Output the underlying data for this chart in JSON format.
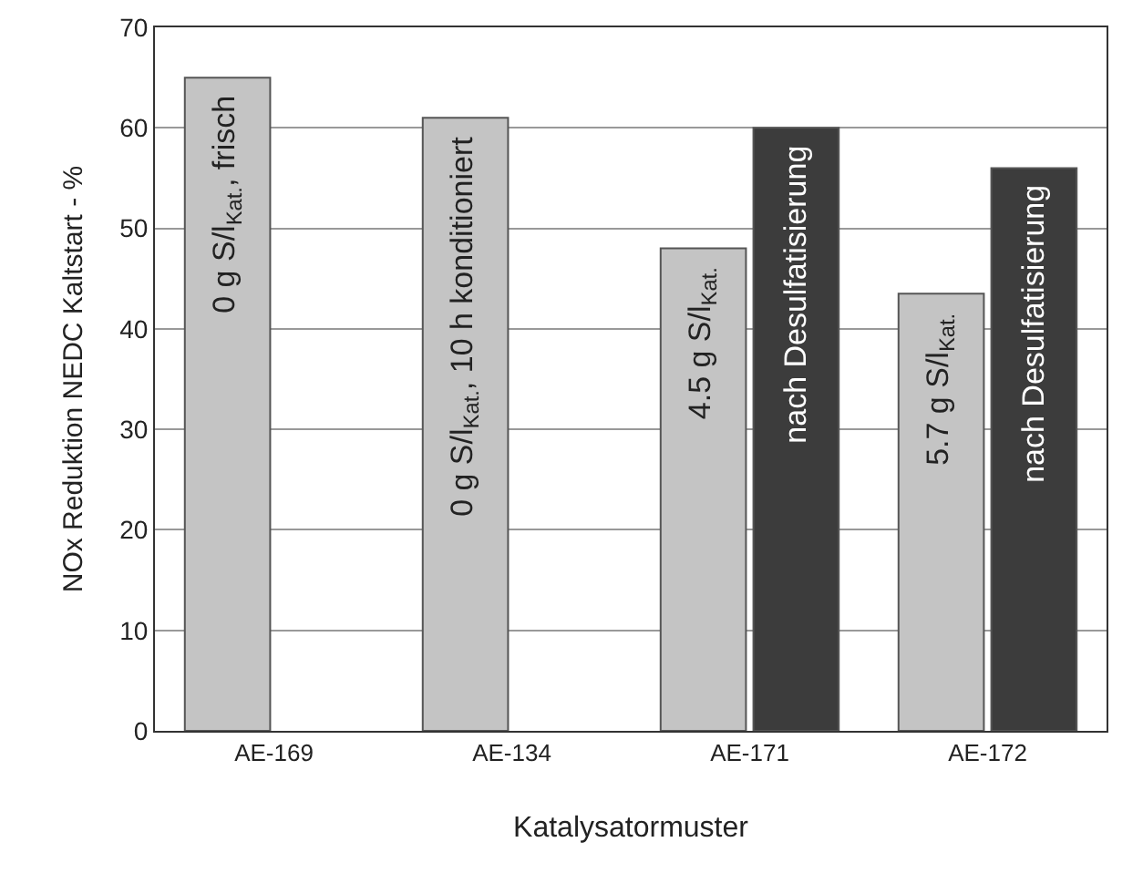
{
  "chart_data": {
    "type": "bar",
    "xlabel": "Katalysatormuster",
    "ylabel": "NOx Reduktion NEDC Kaltstart - %",
    "categories": [
      "AE-169",
      "AE-134",
      "AE-171",
      "AE-172"
    ],
    "series": [
      {
        "color": "#c4c4c4",
        "values": [
          65,
          61,
          48,
          43.5
        ]
      },
      {
        "color": "#3c3c3c",
        "values": [
          null,
          null,
          60,
          56
        ]
      }
    ],
    "annotations": [
      {
        "text": "0 g S/l$_{Kat.}$, frisch",
        "x": "AE-169",
        "y": 65
      },
      {
        "text": "0 g S/l$_{Kat.}$, 10 h konditioniert",
        "x": "AE-134",
        "y": 61
      },
      {
        "text": "4.5 g S/l$_{Kat.}$",
        "x": "AE-171",
        "y": 48
      },
      {
        "text": "nach Desulfatisierung",
        "x": "AE-171",
        "y": 60
      },
      {
        "text": "5.7 g S/l$_{Kat.}$",
        "x": "AE-172",
        "y": 43.5
      },
      {
        "text": "nach Desulfatisierung",
        "x": "AE-172",
        "y": 56
      }
    ],
    "ylim": [
      0,
      70
    ],
    "yticks": [
      0,
      10,
      20,
      30,
      40,
      50,
      60,
      70
    ],
    "grid": "y"
  }
}
